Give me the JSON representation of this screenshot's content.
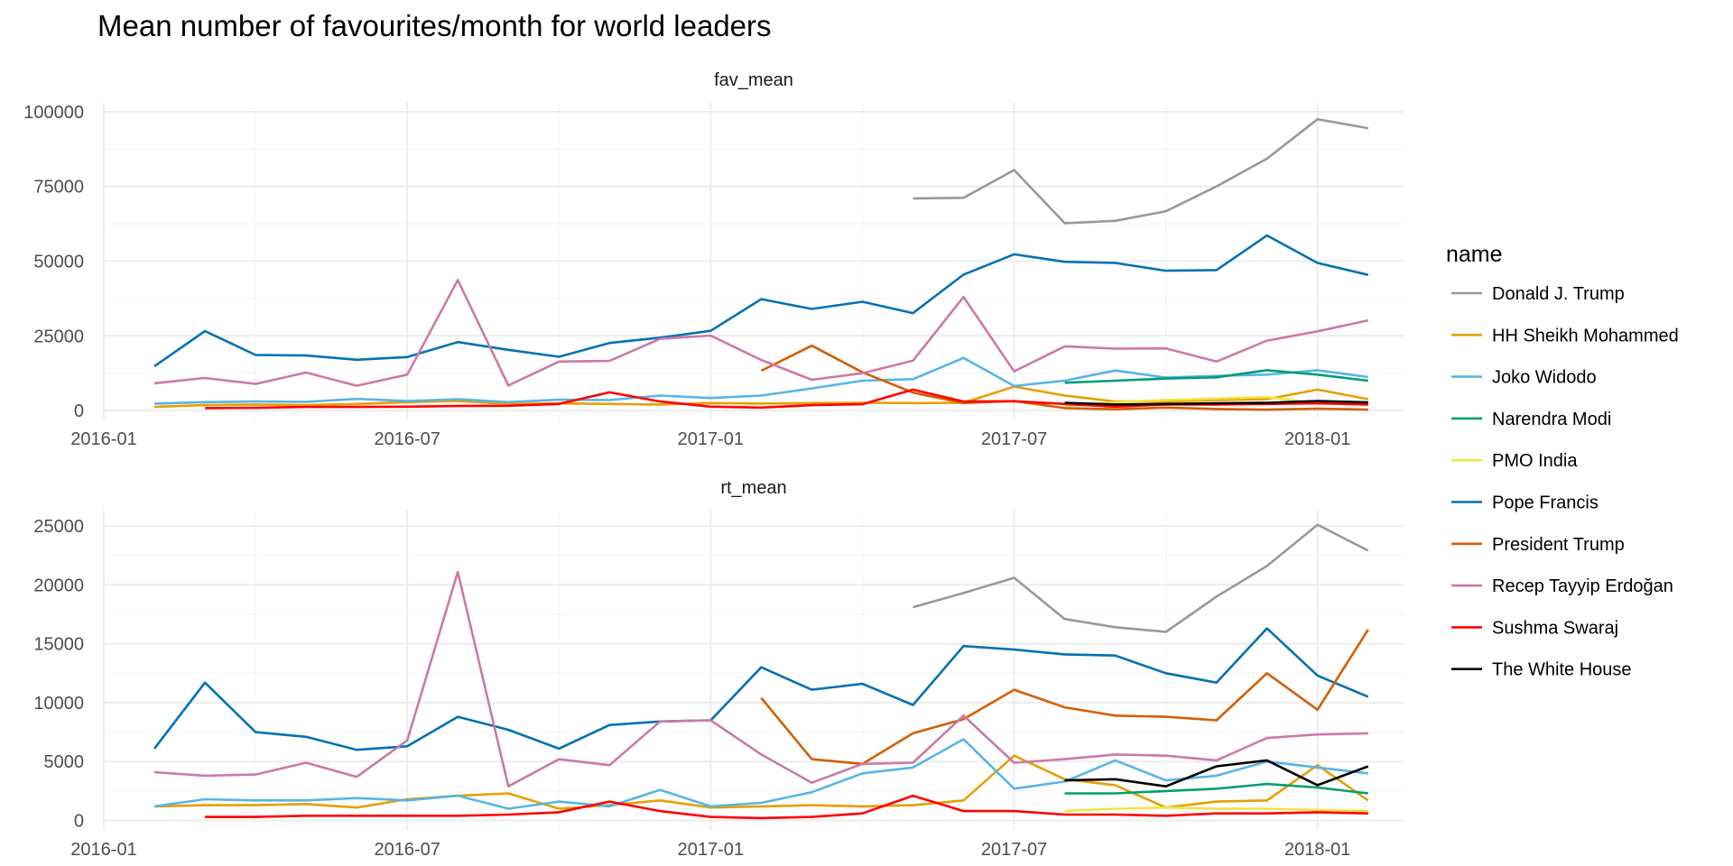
{
  "chart_data": {
    "type": "line",
    "title": "Mean number of favourites/month for world leaders",
    "x_tick_labels": [
      "2016-01",
      "2016-07",
      "2017-01",
      "2017-07",
      "2018-01"
    ],
    "legend": {
      "title": "name",
      "placement": "right"
    },
    "grid": true,
    "series_names": [
      "Donald J. Trump",
      "HH Sheikh Mohammed",
      "Joko Widodo",
      "Narendra Modi",
      "PMO India",
      "Pope Francis",
      "President Trump",
      "Recep Tayyip Erdoğan",
      "Sushma Swaraj",
      "The White House"
    ],
    "series_colors": [
      "#999999",
      "#E69F00",
      "#56B4E9",
      "#009E73",
      "#F0E442",
      "#0072B2",
      "#D55E00",
      "#CC79A7",
      "#FF0000",
      "#000000"
    ],
    "panels": [
      {
        "facet": "fav_mean",
        "ylim": [
          -3000,
          103000
        ],
        "y_ticks": [
          0,
          25000,
          50000,
          75000,
          100000
        ],
        "x": [
          "2016-02",
          "2016-03",
          "2016-04",
          "2016-05",
          "2016-06",
          "2016-07",
          "2016-08",
          "2016-09",
          "2016-10",
          "2016-11",
          "2016-12",
          "2017-01",
          "2017-02",
          "2017-03",
          "2017-04",
          "2017-05",
          "2017-06",
          "2017-07",
          "2017-08",
          "2017-09",
          "2017-10",
          "2017-11",
          "2017-12",
          "2018-01",
          "2018-02"
        ],
        "series": [
          {
            "values": [
              null,
              null,
              null,
              null,
              null,
              null,
              null,
              null,
              null,
              null,
              null,
              null,
              null,
              null,
              null,
              71000,
              71200,
              80500,
              62700,
              63500,
              66700,
              75000,
              84300,
              97500,
              94500
            ]
          },
          {
            "values": [
              1200,
              1800,
              2000,
              1800,
              2200,
              2800,
              3200,
              2200,
              2400,
              2200,
              2000,
              2500,
              2300,
              2500,
              2600,
              2500,
              2600,
              8000,
              5000,
              3000,
              3000,
              3500,
              3800,
              7000,
              3800
            ]
          },
          {
            "values": [
              2300,
              2800,
              3000,
              2900,
              3900,
              3200,
              3800,
              2800,
              3600,
              3500,
              5000,
              4200,
              5000,
              7400,
              10000,
              10500,
              17600,
              8200,
              10000,
              13400,
              11000,
              11600,
              12000,
              13500,
              11200
            ]
          },
          {
            "values": [
              null,
              null,
              null,
              null,
              null,
              null,
              null,
              null,
              null,
              null,
              null,
              null,
              null,
              null,
              null,
              null,
              null,
              null,
              9300,
              10000,
              10700,
              11100,
              13500,
              12000,
              10000
            ]
          },
          {
            "values": [
              null,
              null,
              null,
              null,
              null,
              null,
              null,
              null,
              null,
              null,
              null,
              null,
              null,
              null,
              null,
              null,
              null,
              null,
              1500,
              2800,
              3500,
              4000,
              4500,
              2500,
              2500
            ]
          },
          {
            "values": [
              14800,
              26600,
              18600,
              18400,
              17000,
              17900,
              22900,
              20300,
              18000,
              22600,
              24400,
              26700,
              37300,
              34000,
              36400,
              32600,
              45500,
              52300,
              49800,
              49400,
              46800,
              47000,
              58600,
              49400,
              45400
            ]
          },
          {
            "values": [
              null,
              null,
              null,
              null,
              null,
              null,
              null,
              null,
              null,
              null,
              null,
              null,
              13300,
              21700,
              12800,
              6000,
              2500,
              3200,
              800,
              400,
              1000,
              500,
              300,
              600,
              300
            ]
          },
          {
            "values": [
              9100,
              10900,
              8900,
              12700,
              8300,
              12000,
              43700,
              8400,
              16400,
              16600,
              24000,
              25100,
              16900,
              10300,
              12500,
              16700,
              38000,
              13100,
              21500,
              20700,
              20800,
              16400,
              23400,
              26500,
              30200
            ]
          },
          {
            "values": [
              null,
              800,
              900,
              1200,
              1200,
              1300,
              1500,
              1600,
              2200,
              6100,
              3000,
              1300,
              1000,
              1800,
              2100,
              7000,
              3000,
              3100,
              2200,
              1300,
              2000,
              2000,
              2200,
              2400,
              2000
            ]
          },
          {
            "values": [
              null,
              null,
              null,
              null,
              null,
              null,
              null,
              null,
              null,
              null,
              null,
              null,
              null,
              null,
              null,
              null,
              null,
              null,
              2600,
              2000,
              2200,
              2400,
              2600,
              3200,
              2700
            ]
          }
        ]
      },
      {
        "facet": "rt_mean",
        "ylim": [
          -800,
          26300
        ],
        "y_ticks": [
          0,
          5000,
          10000,
          15000,
          20000,
          25000
        ],
        "x": [
          "2016-02",
          "2016-03",
          "2016-04",
          "2016-05",
          "2016-06",
          "2016-07",
          "2016-08",
          "2016-09",
          "2016-10",
          "2016-11",
          "2016-12",
          "2017-01",
          "2017-02",
          "2017-03",
          "2017-04",
          "2017-05",
          "2017-06",
          "2017-07",
          "2017-08",
          "2017-09",
          "2017-10",
          "2017-11",
          "2017-12",
          "2018-01",
          "2018-02"
        ],
        "series": [
          {
            "values": [
              null,
              null,
              null,
              null,
              null,
              null,
              null,
              null,
              null,
              null,
              null,
              null,
              null,
              null,
              null,
              18100,
              19300,
              20600,
              17100,
              16400,
              16000,
              19000,
              21600,
              25100,
              22900
            ]
          },
          {
            "values": [
              1200,
              1300,
              1300,
              1400,
              1100,
              1800,
              2100,
              2300,
              1000,
              1300,
              1700,
              1100,
              1200,
              1300,
              1200,
              1300,
              1700,
              5500,
              3500,
              3000,
              1100,
              1600,
              1700,
              4700,
              1700
            ]
          },
          {
            "values": [
              1200,
              1800,
              1700,
              1700,
              1900,
              1700,
              2100,
              1000,
              1600,
              1200,
              2600,
              1200,
              1500,
              2400,
              4000,
              4500,
              6900,
              2700,
              3300,
              5100,
              3400,
              3800,
              5000,
              4500,
              4000
            ]
          },
          {
            "values": [
              null,
              null,
              null,
              null,
              null,
              null,
              null,
              null,
              null,
              null,
              null,
              null,
              null,
              null,
              null,
              null,
              null,
              null,
              2300,
              2300,
              2500,
              2700,
              3100,
              2800,
              2300
            ]
          },
          {
            "values": [
              null,
              null,
              null,
              null,
              null,
              null,
              null,
              null,
              null,
              null,
              null,
              null,
              null,
              null,
              null,
              null,
              null,
              null,
              800,
              1000,
              1100,
              1000,
              1000,
              900,
              800
            ]
          },
          {
            "values": [
              6100,
              11700,
              7500,
              7100,
              6000,
              6300,
              8800,
              7700,
              6100,
              8100,
              8400,
              8500,
              13000,
              11100,
              11600,
              9800,
              14800,
              14500,
              14100,
              14000,
              12500,
              11700,
              16300,
              12300,
              10500
            ]
          },
          {
            "values": [
              null,
              null,
              null,
              null,
              null,
              null,
              null,
              null,
              null,
              null,
              null,
              null,
              10400,
              5200,
              4800,
              7400,
              8600,
              11100,
              9600,
              8900,
              8800,
              8500,
              12500,
              9400,
              16200
            ]
          },
          {
            "values": [
              4100,
              3800,
              3900,
              4900,
              3700,
              6800,
              21100,
              2900,
              5200,
              4700,
              8400,
              8500,
              5600,
              3200,
              4800,
              4900,
              8900,
              4900,
              5200,
              5600,
              5500,
              5100,
              7000,
              7300,
              7400
            ]
          },
          {
            "values": [
              null,
              300,
              300,
              400,
              400,
              400,
              400,
              500,
              700,
              1600,
              800,
              300,
              200,
              300,
              600,
              2100,
              800,
              800,
              500,
              500,
              400,
              600,
              600,
              700,
              600
            ]
          },
          {
            "values": [
              null,
              null,
              null,
              null,
              null,
              null,
              null,
              null,
              null,
              null,
              null,
              null,
              null,
              null,
              null,
              null,
              null,
              null,
              3400,
              3500,
              2900,
              4600,
              5100,
              3000,
              4600
            ]
          }
        ]
      }
    ]
  }
}
